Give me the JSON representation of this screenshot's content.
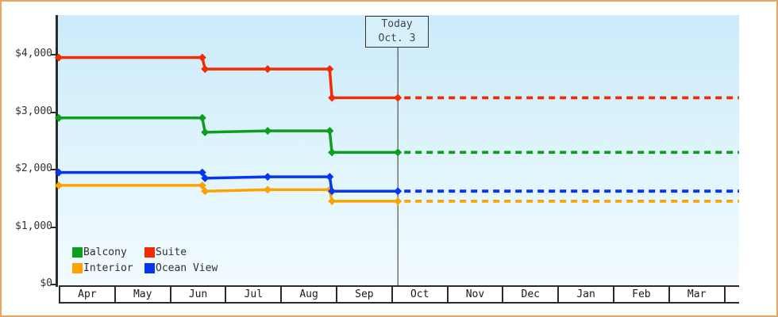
{
  "page": {
    "border_color": "#eda25d",
    "plot_background_top": "#cbeafa",
    "plot_background_bottom": "#f2fbff"
  },
  "y_axis": {
    "ticks": [
      {
        "label": "$4,000",
        "value": 4000
      },
      {
        "label": "$3,000",
        "value": 3000
      },
      {
        "label": "$2,000",
        "value": 2000
      },
      {
        "label": "$1,000",
        "value": 1000
      },
      {
        "label": "$0",
        "value": 0
      }
    ]
  },
  "x_axis": {
    "months": [
      "Apr",
      "May",
      "Jun",
      "Jul",
      "Aug",
      "Sep",
      "Oct",
      "Nov",
      "Dec",
      "Jan",
      "Feb",
      "Mar"
    ]
  },
  "legend": {
    "items": [
      {
        "label": "Balcony",
        "color": "#0c9e1c"
      },
      {
        "label": "Suite",
        "color": "#f22c00"
      },
      {
        "label": "Interior",
        "color": "#fca302"
      },
      {
        "label": "Ocean View",
        "color": "#0635ef"
      }
    ]
  },
  "chart_data": {
    "type": "line",
    "x_unit": "months since Apr 1",
    "x_range": [
      0,
      12.28
    ],
    "ylim_usd": [
      0,
      4700
    ],
    "grid": false,
    "legend_position": "bottom-left inside plot",
    "annotation": {
      "line1": "Today",
      "line2": "Oct. 3",
      "t": 6.12
    },
    "series": [
      {
        "name": "Balcony",
        "color": "#0c9e1c",
        "points": [
          [
            0,
            2900
          ],
          [
            2.59,
            2900
          ],
          [
            2.64,
            2650
          ],
          [
            3.77,
            2675
          ],
          [
            4.89,
            2675
          ],
          [
            4.93,
            2300
          ],
          [
            6.12,
            2300
          ]
        ],
        "dashed_forecast_value": 2300
      },
      {
        "name": "Suite",
        "color": "#f22c00",
        "points": [
          [
            0,
            3950
          ],
          [
            2.59,
            3950
          ],
          [
            2.64,
            3750
          ],
          [
            3.77,
            3750
          ],
          [
            4.89,
            3750
          ],
          [
            4.93,
            3250
          ],
          [
            6.12,
            3250
          ]
        ],
        "dashed_forecast_value": 3250
      },
      {
        "name": "Interior",
        "color": "#fca302",
        "points": [
          [
            0,
            1725
          ],
          [
            2.59,
            1725
          ],
          [
            2.64,
            1625
          ],
          [
            3.77,
            1650
          ],
          [
            4.89,
            1650
          ],
          [
            4.93,
            1450
          ],
          [
            6.12,
            1450
          ]
        ],
        "dashed_forecast_value": 1450
      },
      {
        "name": "Ocean View",
        "color": "#0635ef",
        "points": [
          [
            0,
            1950
          ],
          [
            2.59,
            1950
          ],
          [
            2.64,
            1850
          ],
          [
            3.77,
            1875
          ],
          [
            4.89,
            1875
          ],
          [
            4.93,
            1625
          ],
          [
            6.12,
            1625
          ]
        ],
        "dashed_forecast_value": 1625
      }
    ]
  }
}
